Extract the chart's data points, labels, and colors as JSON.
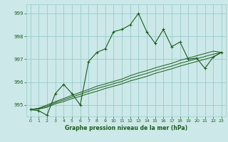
{
  "title": "Graphe pression niveau de la mer (hPa)",
  "bg_color": "#cce8e8",
  "grid_color": "#99cccc",
  "line_color": "#1a5c1a",
  "xlim": [
    -0.5,
    23.5
  ],
  "ylim": [
    994.5,
    999.4
  ],
  "yticks": [
    995,
    996,
    997,
    998,
    999
  ],
  "xticks": [
    0,
    1,
    2,
    3,
    4,
    5,
    6,
    7,
    8,
    9,
    10,
    11,
    12,
    13,
    14,
    15,
    16,
    17,
    18,
    19,
    20,
    21,
    22,
    23
  ],
  "main_y": [
    994.8,
    994.75,
    994.55,
    995.5,
    995.9,
    995.5,
    995.0,
    996.9,
    997.3,
    997.45,
    998.2,
    998.3,
    998.5,
    999.0,
    998.2,
    997.7,
    998.3,
    997.55,
    997.75,
    997.0,
    997.05,
    996.6,
    997.1,
    997.3
  ],
  "trend1_y": [
    994.8,
    994.82,
    994.9,
    995.05,
    995.15,
    995.28,
    995.38,
    995.5,
    995.6,
    995.72,
    995.82,
    995.92,
    996.05,
    996.15,
    996.25,
    996.38,
    996.48,
    996.58,
    996.7,
    996.8,
    996.9,
    997.0,
    997.1,
    997.3
  ],
  "trend2_y": [
    994.8,
    994.84,
    994.95,
    995.1,
    995.22,
    995.35,
    995.47,
    995.6,
    995.72,
    995.82,
    995.93,
    996.03,
    996.17,
    996.28,
    996.38,
    996.5,
    996.6,
    996.7,
    996.82,
    996.92,
    997.02,
    997.12,
    997.22,
    997.3
  ],
  "trend3_y": [
    994.8,
    994.86,
    995.0,
    995.15,
    995.28,
    995.42,
    995.55,
    995.68,
    995.82,
    995.92,
    996.03,
    996.13,
    996.28,
    996.4,
    996.5,
    996.62,
    996.72,
    996.82,
    996.95,
    997.05,
    997.15,
    997.25,
    997.35,
    997.3
  ]
}
